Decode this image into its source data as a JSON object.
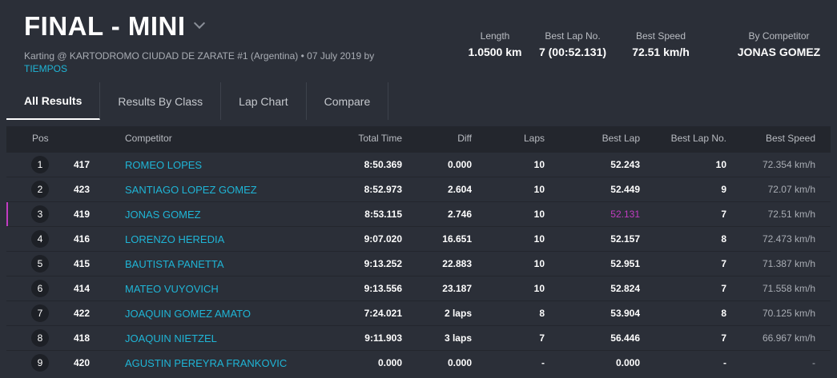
{
  "header": {
    "title": "FINAL - MINI",
    "subtitle": "Karting @ KARTODROMO CIUDAD DE ZARATE #1 (Argentina) • 07 July 2019 by",
    "subtitle_link": "TIEMPOS",
    "stats": [
      {
        "label": "Length",
        "value": "1.0500 km"
      },
      {
        "label": "Best Lap No.",
        "value": "7 (00:52.131)"
      },
      {
        "label": "Best Speed",
        "value": "72.51 km/h"
      },
      {
        "label": "By Competitor",
        "value": "JONAS GOMEZ"
      }
    ]
  },
  "tabs": [
    {
      "label": "All Results"
    },
    {
      "label": "Results By Class"
    },
    {
      "label": "Lap Chart"
    },
    {
      "label": "Compare"
    }
  ],
  "table": {
    "columns": {
      "pos": "Pos",
      "competitor": "Competitor",
      "total": "Total Time",
      "diff": "Diff",
      "laps": "Laps",
      "best": "Best Lap",
      "bestno": "Best Lap No.",
      "speed": "Best Speed"
    },
    "rows": [
      {
        "pos": "1",
        "num": "417",
        "competitor": "ROMEO LOPES",
        "total": "8:50.369",
        "diff": "0.000",
        "laps": "10",
        "best": "52.243",
        "bestno": "10",
        "speed": "72.354 km/h"
      },
      {
        "pos": "2",
        "num": "423",
        "competitor": "SANTIAGO LOPEZ GOMEZ",
        "total": "8:52.973",
        "diff": "2.604",
        "laps": "10",
        "best": "52.449",
        "bestno": "9",
        "speed": "72.07 km/h"
      },
      {
        "pos": "3",
        "num": "419",
        "competitor": "JONAS GOMEZ",
        "total": "8:53.115",
        "diff": "2.746",
        "laps": "10",
        "best": "52.131",
        "bestno": "7",
        "speed": "72.51 km/h"
      },
      {
        "pos": "4",
        "num": "416",
        "competitor": "LORENZO HEREDIA",
        "total": "9:07.020",
        "diff": "16.651",
        "laps": "10",
        "best": "52.157",
        "bestno": "8",
        "speed": "72.473 km/h"
      },
      {
        "pos": "5",
        "num": "415",
        "competitor": "BAUTISTA PANETTA",
        "total": "9:13.252",
        "diff": "22.883",
        "laps": "10",
        "best": "52.951",
        "bestno": "7",
        "speed": "71.387 km/h"
      },
      {
        "pos": "6",
        "num": "414",
        "competitor": "MATEO VUYOVICH",
        "total": "9:13.556",
        "diff": "23.187",
        "laps": "10",
        "best": "52.824",
        "bestno": "7",
        "speed": "71.558 km/h"
      },
      {
        "pos": "7",
        "num": "422",
        "competitor": "JOAQUIN GOMEZ AMATO",
        "total": "7:24.021",
        "diff": "2 laps",
        "laps": "8",
        "best": "53.904",
        "bestno": "8",
        "speed": "70.125 km/h"
      },
      {
        "pos": "8",
        "num": "418",
        "competitor": "JOAQUIN NIETZEL",
        "total": "9:11.903",
        "diff": "3 laps",
        "laps": "7",
        "best": "56.446",
        "bestno": "7",
        "speed": "66.967 km/h"
      },
      {
        "pos": "9",
        "num": "420",
        "competitor": "AGUSTIN PEREYRA FRANKOVIC",
        "total": "0.000",
        "diff": "0.000",
        "laps": "-",
        "best": "0.000",
        "bestno": "-",
        "speed": "-"
      }
    ]
  },
  "colors": {
    "accent_link": "#1fb5d6",
    "best_lap_highlight": "#c23cc2",
    "background": "#2b2f38"
  }
}
